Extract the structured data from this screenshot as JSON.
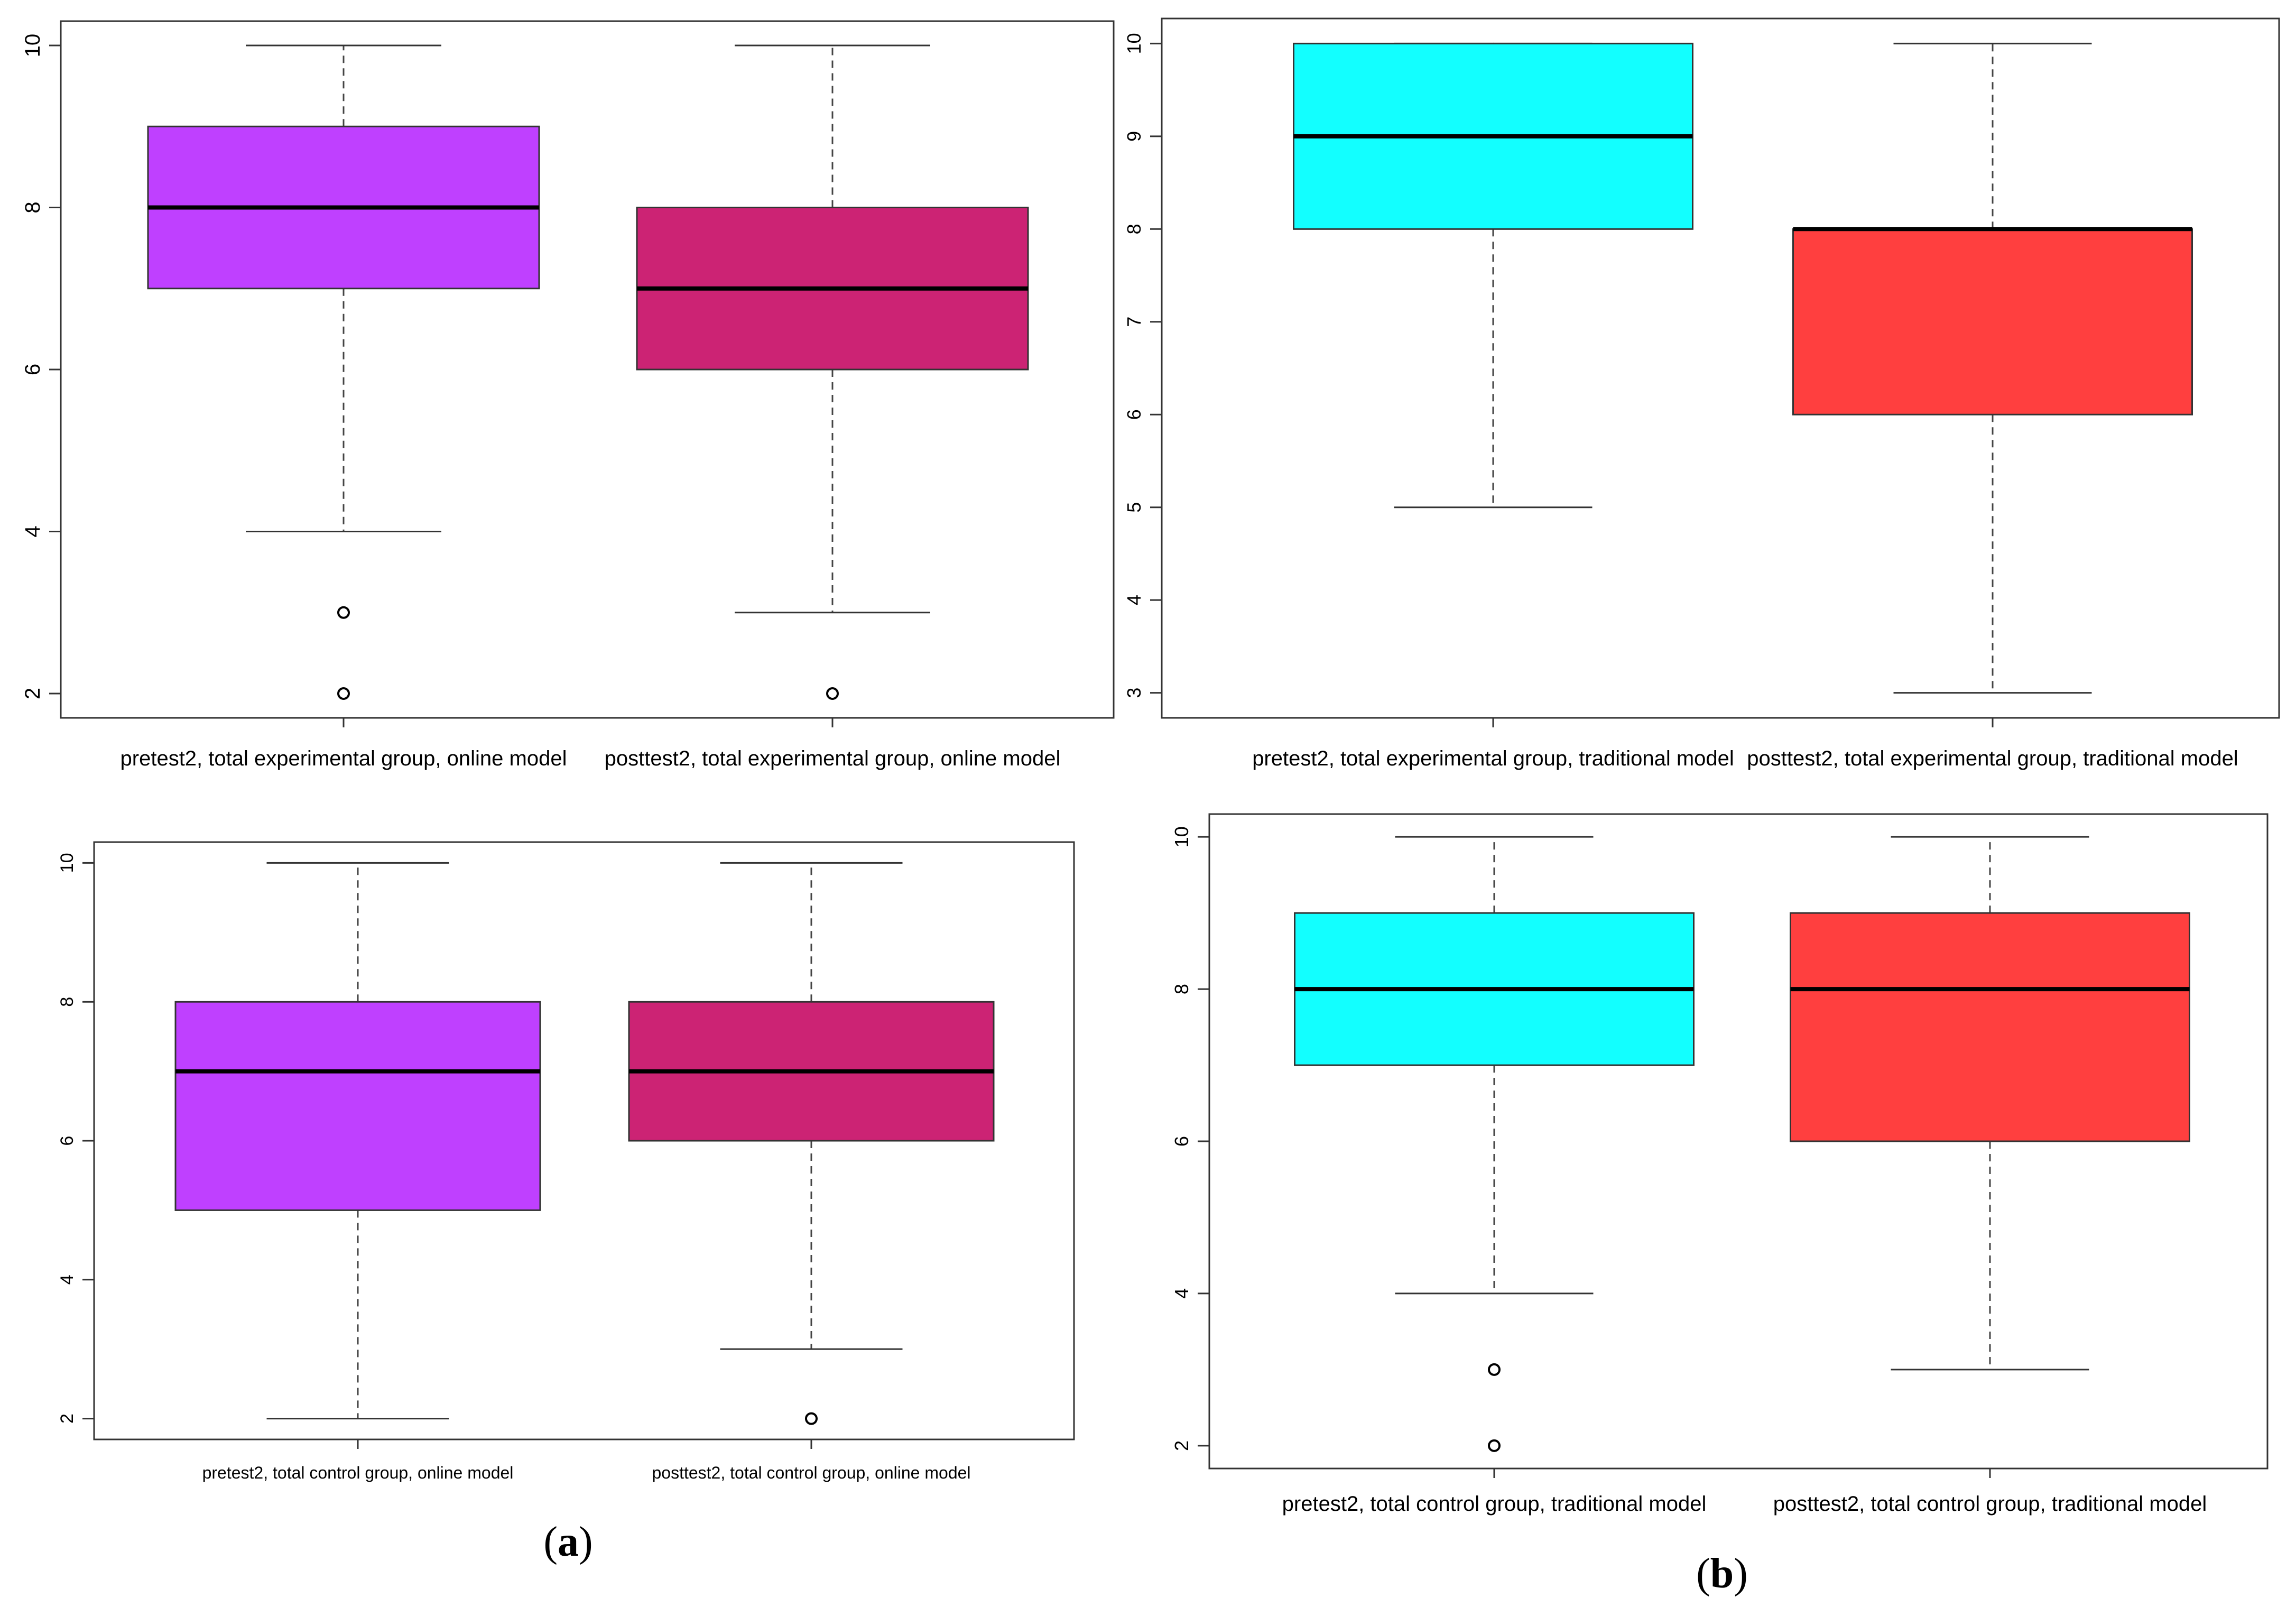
{
  "figure": {
    "panel_labels": [
      {
        "open": "(",
        "letter": "a",
        "close": ")"
      },
      {
        "open": "(",
        "letter": "b",
        "close": ")"
      }
    ]
  },
  "chart_data": [
    {
      "type": "boxplot",
      "id": "top-left",
      "ylim": [
        1.7,
        10.3
      ],
      "yticks": [
        2,
        4,
        6,
        8,
        10
      ],
      "categories": [
        "pretest2, total experimental group, online model",
        "posttest2, total experimental group, online model"
      ],
      "boxes": [
        {
          "whisker_low": 4,
          "q1": 7,
          "median": 8,
          "q3": 9,
          "whisker_high": 10,
          "outliers": [
            3,
            2
          ],
          "fill": "#bf40ff"
        },
        {
          "whisker_low": 3,
          "q1": 6,
          "median": 7,
          "q3": 8,
          "whisker_high": 10,
          "outliers": [
            2
          ],
          "fill": "#cc2374"
        }
      ]
    },
    {
      "type": "boxplot",
      "id": "top-right",
      "ylim": [
        2.73,
        10.27
      ],
      "yticks": [
        3,
        4,
        5,
        6,
        7,
        8,
        9,
        10
      ],
      "categories": [
        "pretest2, total experimental group, traditional model",
        "posttest2, total experimental group, traditional model"
      ],
      "boxes": [
        {
          "whisker_low": 5,
          "q1": 8,
          "median": 9,
          "q3": 10,
          "whisker_high": 10,
          "outliers": [],
          "fill": "#12ffff"
        },
        {
          "whisker_low": 3,
          "q1": 6,
          "median": 8,
          "q3": 8,
          "whisker_high": 10,
          "outliers": [],
          "fill": "#ff3f3f"
        }
      ]
    },
    {
      "type": "boxplot",
      "id": "bottom-left",
      "ylim": [
        1.7,
        10.3
      ],
      "yticks": [
        2,
        4,
        6,
        8,
        10
      ],
      "categories": [
        "pretest2, total control group, online model",
        "posttest2, total control group, online model"
      ],
      "boxes": [
        {
          "whisker_low": 2,
          "q1": 5,
          "median": 7,
          "q3": 8,
          "whisker_high": 10,
          "outliers": [],
          "fill": "#bf40ff"
        },
        {
          "whisker_low": 3,
          "q1": 6,
          "median": 7,
          "q3": 8,
          "whisker_high": 10,
          "outliers": [
            2
          ],
          "fill": "#cc2374"
        }
      ]
    },
    {
      "type": "boxplot",
      "id": "bottom-right",
      "ylim": [
        1.7,
        10.3
      ],
      "yticks": [
        2,
        4,
        6,
        8,
        10
      ],
      "categories": [
        "pretest2, total control group, traditional model",
        "posttest2, total control group, traditional model"
      ],
      "boxes": [
        {
          "whisker_low": 4,
          "q1": 7,
          "median": 8,
          "q3": 9,
          "whisker_high": 10,
          "outliers": [
            3,
            2
          ],
          "fill": "#12ffff"
        },
        {
          "whisker_low": 3,
          "q1": 6,
          "median": 8,
          "q3": 9,
          "whisker_high": 10,
          "outliers": [],
          "fill": "#ff3f3f"
        }
      ]
    }
  ]
}
